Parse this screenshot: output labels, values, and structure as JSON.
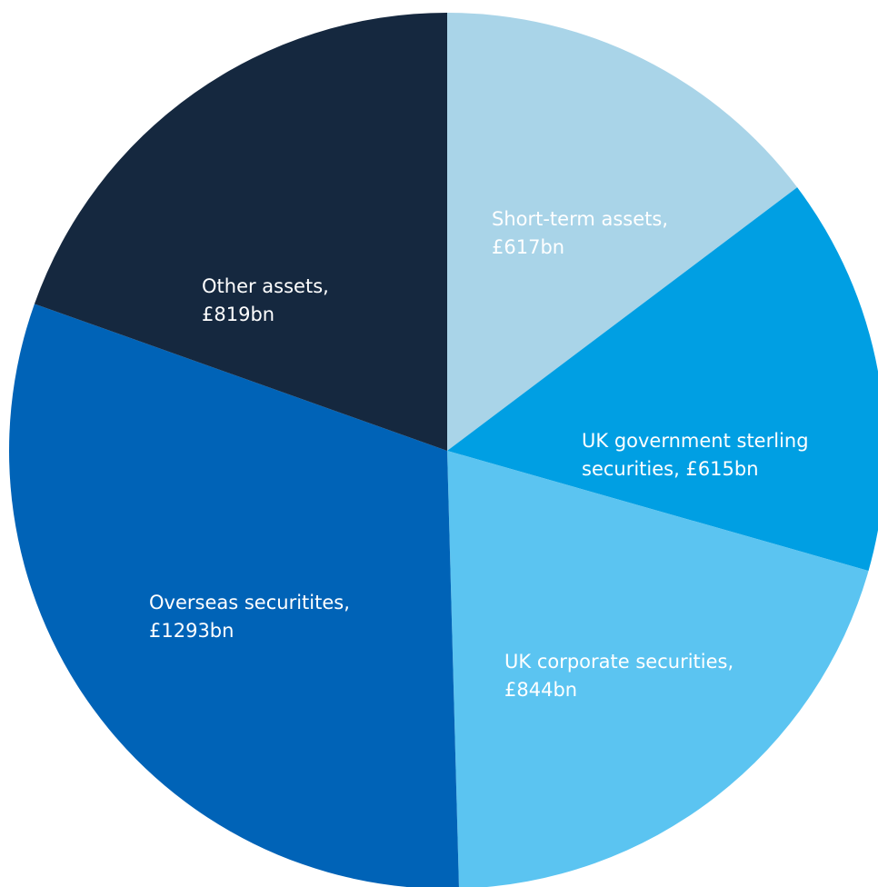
{
  "chart_data": {
    "type": "pie",
    "title": "",
    "slices": [
      {
        "name": "Short-term assets",
        "value": 617,
        "unit": "£bn",
        "label_lines": [
          "Short-term assets,",
          "£617bn"
        ],
        "color": "#a9d4e8"
      },
      {
        "name": "UK government sterling securities",
        "value": 615,
        "unit": "£bn",
        "label_lines": [
          "UK government sterling",
          "securities, £615bn"
        ],
        "color": "#009fe3"
      },
      {
        "name": "UK corporate securities",
        "value": 844,
        "unit": "£bn",
        "label_lines": [
          "UK corporate securities,",
          "£844bn"
        ],
        "color": "#5bc4f1"
      },
      {
        "name": "Overseas securitites",
        "value": 1293,
        "unit": "£bn",
        "label_lines": [
          "Overseas securitites,",
          "£1293bn"
        ],
        "color": "#0063b7"
      },
      {
        "name": "Other assets",
        "value": 819,
        "unit": "£bn",
        "label_lines": [
          "Other assets,",
          "£819bn"
        ],
        "color": "#15283f"
      }
    ],
    "start_angle_deg": 0,
    "direction": "clockwise",
    "legend": "none"
  }
}
